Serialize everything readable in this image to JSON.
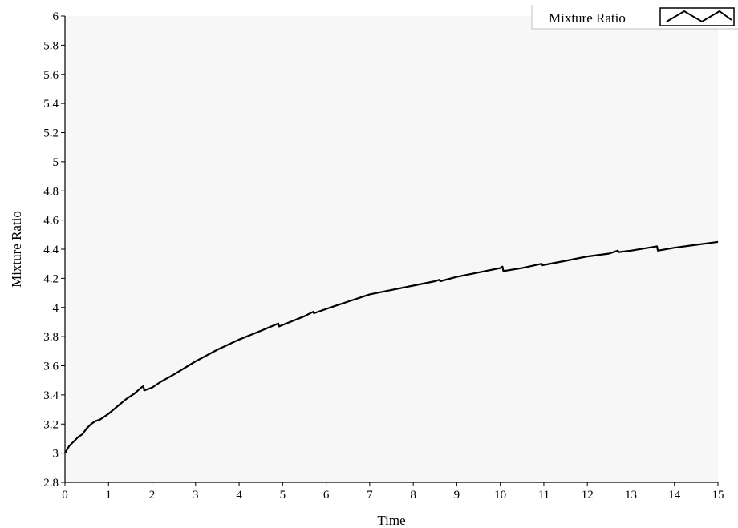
{
  "chart_data": {
    "type": "line",
    "xlabel": "Time",
    "ylabel": "Mixture Ratio",
    "xlim": [
      0,
      15
    ],
    "ylim": [
      2.8,
      6
    ],
    "xticks": [
      0,
      1,
      2,
      3,
      4,
      5,
      6,
      7,
      8,
      9,
      10,
      11,
      12,
      13,
      14,
      15
    ],
    "yticks": [
      2.8,
      3,
      3.2,
      3.4,
      3.6,
      3.8,
      4,
      4.2,
      4.4,
      4.6,
      4.8,
      5,
      5.2,
      5.4,
      5.6,
      5.8,
      6
    ],
    "grid": false,
    "legend_position": "top-right",
    "colors": {
      "line": "#000000",
      "plot_background": "#f7f7f7",
      "page_background": "#ffffff"
    },
    "series": [
      {
        "name": "Mixture Ratio",
        "x": [
          0,
          0.1,
          0.2,
          0.3,
          0.4,
          0.5,
          0.6,
          0.7,
          0.8,
          1.0,
          1.2,
          1.4,
          1.6,
          1.75,
          1.8,
          1.82,
          2.0,
          2.2,
          2.5,
          3.0,
          3.5,
          4.0,
          4.5,
          4.9,
          4.92,
          5.0,
          5.5,
          5.7,
          5.72,
          6.0,
          6.5,
          7.0,
          7.5,
          8.0,
          8.5,
          8.6,
          8.62,
          9.0,
          9.5,
          10.0,
          10.05,
          10.07,
          10.5,
          10.95,
          10.97,
          11.5,
          12.0,
          12.5,
          12.7,
          12.72,
          13.0,
          13.6,
          13.62,
          14.0,
          14.5,
          15.0
        ],
        "y": [
          3.0,
          3.05,
          3.08,
          3.11,
          3.13,
          3.17,
          3.2,
          3.22,
          3.23,
          3.27,
          3.32,
          3.37,
          3.41,
          3.45,
          3.46,
          3.43,
          3.45,
          3.49,
          3.54,
          3.63,
          3.71,
          3.78,
          3.84,
          3.89,
          3.87,
          3.88,
          3.94,
          3.97,
          3.96,
          3.99,
          4.04,
          4.09,
          4.12,
          4.15,
          4.18,
          4.19,
          4.18,
          4.21,
          4.24,
          4.27,
          4.28,
          4.25,
          4.27,
          4.3,
          4.29,
          4.32,
          4.35,
          4.37,
          4.39,
          4.38,
          4.39,
          4.42,
          4.39,
          4.41,
          4.43,
          4.45
        ]
      }
    ]
  }
}
